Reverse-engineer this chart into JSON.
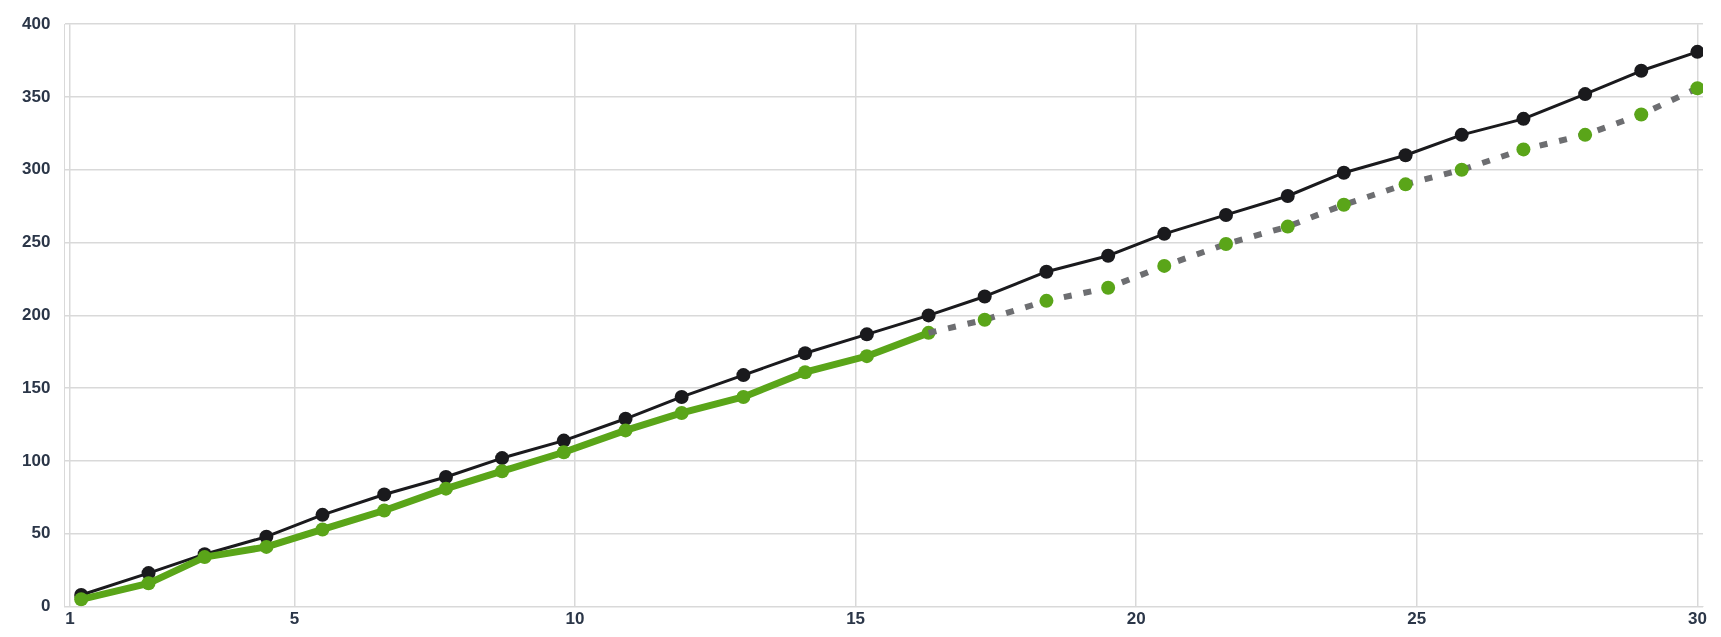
{
  "chart_data": {
    "type": "line",
    "x": [
      1.2,
      2.4,
      3.4,
      4.5,
      5.5,
      6.6,
      7.7,
      8.7,
      9.8,
      10.9,
      11.9,
      13.0,
      14.1,
      15.2,
      16.3,
      17.3,
      18.4,
      19.5,
      20.5,
      21.6,
      22.7,
      23.7,
      24.8,
      25.8,
      26.9,
      28.0,
      29.0,
      30.0
    ],
    "series": [
      {
        "color": "#1a1a1d",
        "marker": "circle",
        "line_style": "solid",
        "values": [
          8,
          23,
          36,
          48,
          63,
          77,
          89,
          102,
          114,
          129,
          144,
          159,
          174,
          187,
          200,
          213,
          230,
          241,
          256,
          269,
          282,
          298,
          310,
          324,
          335,
          352,
          368,
          381
        ]
      },
      {
        "color": "#5aa519",
        "marker": "circle",
        "line_style": "solid",
        "values": [
          5,
          16,
          34,
          41,
          53,
          66,
          81,
          93,
          106,
          121,
          133,
          144,
          161,
          172,
          188,
          null,
          null,
          null,
          null,
          null,
          null,
          null,
          null,
          null,
          null,
          null,
          null,
          null
        ]
      },
      {
        "color": "#6d6e71",
        "marker": "none",
        "line_style": "dotted",
        "values": [
          null,
          null,
          null,
          null,
          null,
          null,
          null,
          null,
          null,
          null,
          null,
          null,
          null,
          null,
          188,
          197,
          210,
          219,
          234,
          249,
          261,
          276,
          290,
          300,
          314,
          324,
          338,
          356
        ]
      },
      {
        "type": "scatter",
        "color": "#5aa519",
        "marker": "circle",
        "values": [
          null,
          null,
          null,
          null,
          null,
          null,
          null,
          null,
          null,
          null,
          null,
          null,
          null,
          null,
          null,
          197,
          210,
          219,
          234,
          249,
          261,
          276,
          290,
          300,
          314,
          324,
          338,
          356
        ]
      }
    ],
    "xlim": [
      0.9,
      30.1
    ],
    "xticks": [
      1,
      5,
      10,
      15,
      20,
      25,
      30
    ],
    "ylim": [
      0,
      400
    ],
    "yticks": [
      0,
      50,
      100,
      150,
      200,
      250,
      300,
      350,
      400
    ],
    "grid": true,
    "legend": false
  }
}
